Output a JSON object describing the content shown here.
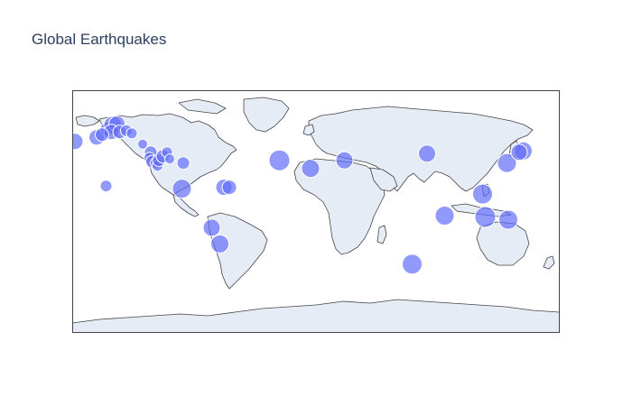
{
  "figure": {
    "title": "Global Earthquakes"
  },
  "colors": {
    "land": "#e5ecf6",
    "ocean": "#ffffff",
    "coastline": "#444444",
    "frame": "#444444",
    "marker": "#636efa",
    "marker_line": "#ffffff"
  },
  "chart_data": {
    "type": "scatter",
    "projection": "equirectangular",
    "lonaxis_range": [
      -180,
      180
    ],
    "lataxis_range": [
      -90,
      90
    ],
    "marker_opacity": 0.7,
    "points": [
      {
        "lon": -178,
        "lat": 52,
        "size": 12
      },
      {
        "lon": -162,
        "lat": 55,
        "size": 11
      },
      {
        "lon": -154,
        "lat": 61,
        "size": 10
      },
      {
        "lon": -150,
        "lat": 64,
        "size": 14
      },
      {
        "lon": -147,
        "lat": 65,
        "size": 12
      },
      {
        "lon": -151,
        "lat": 59,
        "size": 11
      },
      {
        "lon": -158,
        "lat": 57,
        "size": 9
      },
      {
        "lon": -145,
        "lat": 59,
        "size": 9
      },
      {
        "lon": -140,
        "lat": 60,
        "size": 7
      },
      {
        "lon": -136,
        "lat": 58,
        "size": 6
      },
      {
        "lon": -128,
        "lat": 50,
        "size": 5
      },
      {
        "lon": -122,
        "lat": 44,
        "size": 8
      },
      {
        "lon": -123,
        "lat": 40,
        "size": 6
      },
      {
        "lon": -121,
        "lat": 37,
        "size": 8
      },
      {
        "lon": -118,
        "lat": 36,
        "size": 7
      },
      {
        "lon": -117,
        "lat": 34,
        "size": 6
      },
      {
        "lon": -116,
        "lat": 38,
        "size": 8
      },
      {
        "lon": -113,
        "lat": 41,
        "size": 9
      },
      {
        "lon": -110,
        "lat": 44,
        "size": 6
      },
      {
        "lon": -108,
        "lat": 39,
        "size": 5
      },
      {
        "lon": -98,
        "lat": 36,
        "size": 8
      },
      {
        "lon": -155,
        "lat": 19,
        "size": 7
      },
      {
        "lon": -99,
        "lat": 17,
        "size": 15
      },
      {
        "lon": -68,
        "lat": 18,
        "size": 12
      },
      {
        "lon": -64,
        "lat": 18,
        "size": 10
      },
      {
        "lon": -77,
        "lat": -12,
        "size": 13
      },
      {
        "lon": -71,
        "lat": -24,
        "size": 14
      },
      {
        "lon": -27,
        "lat": 38,
        "size": 17
      },
      {
        "lon": -4,
        "lat": 32,
        "size": 14
      },
      {
        "lon": 21,
        "lat": 38,
        "size": 13
      },
      {
        "lon": 71,
        "lat": -39,
        "size": 16
      },
      {
        "lon": 82,
        "lat": 43,
        "size": 13
      },
      {
        "lon": 95,
        "lat": -3,
        "size": 15
      },
      {
        "lon": 123,
        "lat": 13,
        "size": 16
      },
      {
        "lon": 125,
        "lat": -4,
        "size": 17
      },
      {
        "lon": 141,
        "lat": 36,
        "size": 15
      },
      {
        "lon": 153,
        "lat": 45,
        "size": 14
      },
      {
        "lon": 150,
        "lat": 44,
        "size": 12
      },
      {
        "lon": 142,
        "lat": -6,
        "size": 15
      }
    ]
  }
}
